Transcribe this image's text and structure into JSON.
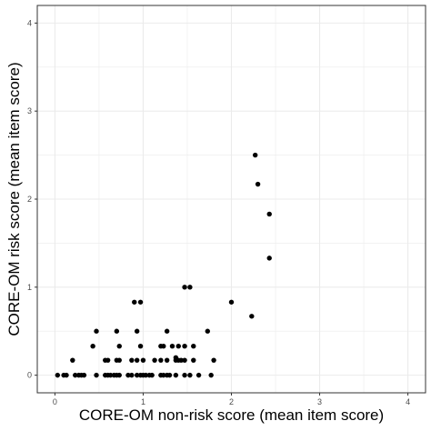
{
  "chart_data": {
    "type": "scatter",
    "title": "",
    "xlabel": "CORE-OM non-risk score (mean item score)",
    "ylabel": "CORE-OM risk score (mean item score)",
    "xlim": [
      -0.2,
      4.2
    ],
    "ylim": [
      -0.2,
      4.2
    ],
    "x_ticks": [
      0,
      1,
      2,
      3,
      4
    ],
    "y_ticks": [
      0,
      1,
      2,
      3,
      4
    ],
    "x_tick_labels": [
      "0",
      "1",
      "2",
      "3",
      "4"
    ],
    "y_tick_labels": [
      "0",
      "1",
      "2",
      "3",
      "4"
    ],
    "grid": true,
    "theme": "black-and-white, light grey grid with minor lines, black panel border",
    "point_color": "#000000",
    "grid_color": "#ebebeb",
    "border_color": "#333333",
    "points": [
      {
        "x": 0.03,
        "y": 0
      },
      {
        "x": 0.1,
        "y": 0
      },
      {
        "x": 0.13,
        "y": 0
      },
      {
        "x": 0.23,
        "y": 0
      },
      {
        "x": 0.27,
        "y": 0
      },
      {
        "x": 0.3,
        "y": 0
      },
      {
        "x": 0.33,
        "y": 0
      },
      {
        "x": 0.47,
        "y": 0
      },
      {
        "x": 0.57,
        "y": 0
      },
      {
        "x": 0.6,
        "y": 0
      },
      {
        "x": 0.63,
        "y": 0
      },
      {
        "x": 0.67,
        "y": 0
      },
      {
        "x": 0.7,
        "y": 0
      },
      {
        "x": 0.73,
        "y": 0
      },
      {
        "x": 0.83,
        "y": 0
      },
      {
        "x": 0.87,
        "y": 0
      },
      {
        "x": 0.93,
        "y": 0
      },
      {
        "x": 0.97,
        "y": 0
      },
      {
        "x": 1.0,
        "y": 0
      },
      {
        "x": 1.03,
        "y": 0
      },
      {
        "x": 1.07,
        "y": 0
      },
      {
        "x": 1.1,
        "y": 0
      },
      {
        "x": 1.2,
        "y": 0
      },
      {
        "x": 1.23,
        "y": 0
      },
      {
        "x": 1.27,
        "y": 0
      },
      {
        "x": 1.3,
        "y": 0
      },
      {
        "x": 1.37,
        "y": 0
      },
      {
        "x": 1.47,
        "y": 0
      },
      {
        "x": 1.53,
        "y": 0
      },
      {
        "x": 1.63,
        "y": 0
      },
      {
        "x": 1.77,
        "y": 0
      },
      {
        "x": 0.2,
        "y": 0.17
      },
      {
        "x": 0.57,
        "y": 0.17
      },
      {
        "x": 0.6,
        "y": 0.17
      },
      {
        "x": 0.7,
        "y": 0.17
      },
      {
        "x": 0.73,
        "y": 0.17
      },
      {
        "x": 0.87,
        "y": 0.17
      },
      {
        "x": 0.93,
        "y": 0.17
      },
      {
        "x": 1.0,
        "y": 0.17
      },
      {
        "x": 1.13,
        "y": 0.17
      },
      {
        "x": 1.2,
        "y": 0.17
      },
      {
        "x": 1.27,
        "y": 0.17
      },
      {
        "x": 1.37,
        "y": 0.17
      },
      {
        "x": 1.4,
        "y": 0.17
      },
      {
        "x": 1.43,
        "y": 0.17
      },
      {
        "x": 1.47,
        "y": 0.17
      },
      {
        "x": 1.57,
        "y": 0.17
      },
      {
        "x": 1.8,
        "y": 0.17
      },
      {
        "x": 1.37,
        "y": 0.2
      },
      {
        "x": 0.43,
        "y": 0.33
      },
      {
        "x": 0.73,
        "y": 0.33
      },
      {
        "x": 0.97,
        "y": 0.33
      },
      {
        "x": 1.2,
        "y": 0.33
      },
      {
        "x": 1.23,
        "y": 0.33
      },
      {
        "x": 1.33,
        "y": 0.33
      },
      {
        "x": 1.4,
        "y": 0.33
      },
      {
        "x": 1.47,
        "y": 0.33
      },
      {
        "x": 1.57,
        "y": 0.33
      },
      {
        "x": 0.47,
        "y": 0.5
      },
      {
        "x": 0.7,
        "y": 0.5
      },
      {
        "x": 0.93,
        "y": 0.5
      },
      {
        "x": 1.27,
        "y": 0.5
      },
      {
        "x": 1.73,
        "y": 0.5
      },
      {
        "x": 2.23,
        "y": 0.67
      },
      {
        "x": 0.9,
        "y": 0.83
      },
      {
        "x": 0.97,
        "y": 0.83
      },
      {
        "x": 2.0,
        "y": 0.83
      },
      {
        "x": 1.47,
        "y": 1.0
      },
      {
        "x": 1.53,
        "y": 1.0
      },
      {
        "x": 2.43,
        "y": 1.33
      },
      {
        "x": 2.43,
        "y": 1.83
      },
      {
        "x": 2.3,
        "y": 2.17
      },
      {
        "x": 2.27,
        "y": 2.5
      }
    ]
  }
}
